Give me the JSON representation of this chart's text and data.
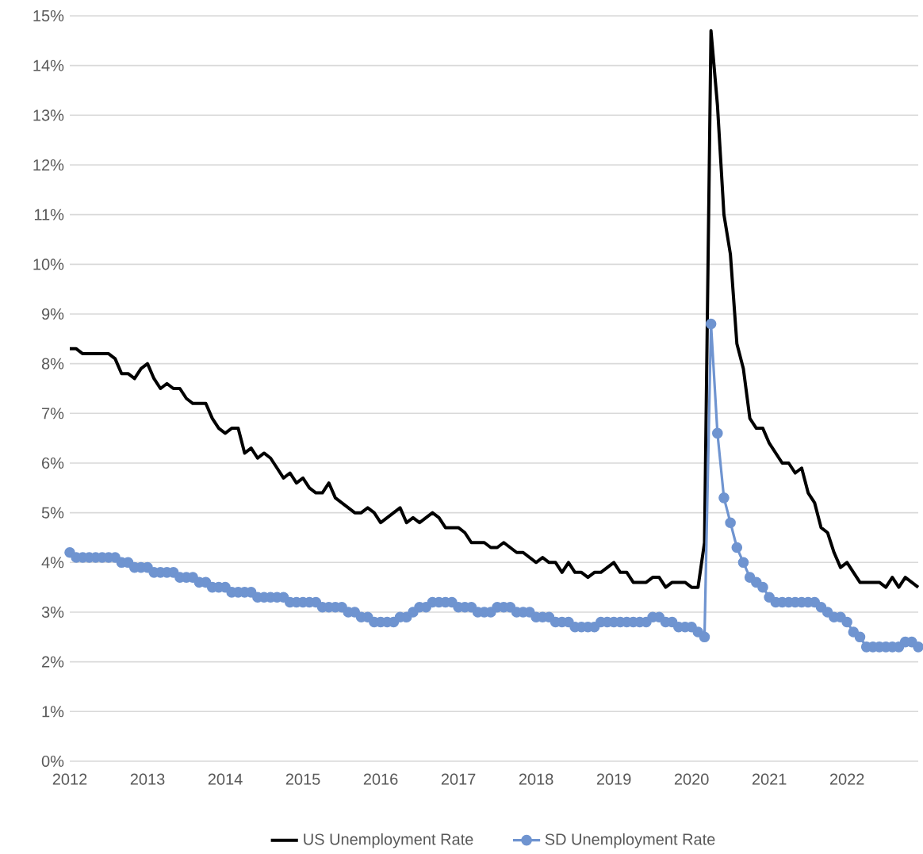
{
  "chart_data": {
    "type": "line",
    "x": [
      "2012-01",
      "2012-02",
      "2012-03",
      "2012-04",
      "2012-05",
      "2012-06",
      "2012-07",
      "2012-08",
      "2012-09",
      "2012-10",
      "2012-11",
      "2012-12",
      "2013-01",
      "2013-02",
      "2013-03",
      "2013-04",
      "2013-05",
      "2013-06",
      "2013-07",
      "2013-08",
      "2013-09",
      "2013-10",
      "2013-11",
      "2013-12",
      "2014-01",
      "2014-02",
      "2014-03",
      "2014-04",
      "2014-05",
      "2014-06",
      "2014-07",
      "2014-08",
      "2014-09",
      "2014-10",
      "2014-11",
      "2014-12",
      "2015-01",
      "2015-02",
      "2015-03",
      "2015-04",
      "2015-05",
      "2015-06",
      "2015-07",
      "2015-08",
      "2015-09",
      "2015-10",
      "2015-11",
      "2015-12",
      "2016-01",
      "2016-02",
      "2016-03",
      "2016-04",
      "2016-05",
      "2016-06",
      "2016-07",
      "2016-08",
      "2016-09",
      "2016-10",
      "2016-11",
      "2016-12",
      "2017-01",
      "2017-02",
      "2017-03",
      "2017-04",
      "2017-05",
      "2017-06",
      "2017-07",
      "2017-08",
      "2017-09",
      "2017-10",
      "2017-11",
      "2017-12",
      "2018-01",
      "2018-02",
      "2018-03",
      "2018-04",
      "2018-05",
      "2018-06",
      "2018-07",
      "2018-08",
      "2018-09",
      "2018-10",
      "2018-11",
      "2018-12",
      "2019-01",
      "2019-02",
      "2019-03",
      "2019-04",
      "2019-05",
      "2019-06",
      "2019-07",
      "2019-08",
      "2019-09",
      "2019-10",
      "2019-11",
      "2019-12",
      "2020-01",
      "2020-02",
      "2020-03",
      "2020-04",
      "2020-05",
      "2020-06",
      "2020-07",
      "2020-08",
      "2020-09",
      "2020-10",
      "2020-11",
      "2020-12",
      "2021-01",
      "2021-02",
      "2021-03",
      "2021-04",
      "2021-05",
      "2021-06",
      "2021-07",
      "2021-08",
      "2021-09",
      "2021-10",
      "2021-11",
      "2021-12",
      "2022-01",
      "2022-02",
      "2022-03",
      "2022-04",
      "2022-05",
      "2022-06",
      "2022-07",
      "2022-08",
      "2022-09",
      "2022-10",
      "2022-11",
      "2022-12"
    ],
    "series": [
      {
        "name": "US Unemployment Rate",
        "color": "#000000",
        "marker": "none",
        "values": [
          8.3,
          8.3,
          8.2,
          8.2,
          8.2,
          8.2,
          8.2,
          8.1,
          7.8,
          7.8,
          7.7,
          7.9,
          8.0,
          7.7,
          7.5,
          7.6,
          7.5,
          7.5,
          7.3,
          7.2,
          7.2,
          7.2,
          6.9,
          6.7,
          6.6,
          6.7,
          6.7,
          6.2,
          6.3,
          6.1,
          6.2,
          6.1,
          5.9,
          5.7,
          5.8,
          5.6,
          5.7,
          5.5,
          5.4,
          5.4,
          5.6,
          5.3,
          5.2,
          5.1,
          5.0,
          5.0,
          5.1,
          5.0,
          4.8,
          4.9,
          5.0,
          5.1,
          4.8,
          4.9,
          4.8,
          4.9,
          5.0,
          4.9,
          4.7,
          4.7,
          4.7,
          4.6,
          4.4,
          4.4,
          4.4,
          4.3,
          4.3,
          4.4,
          4.3,
          4.2,
          4.2,
          4.1,
          4.0,
          4.1,
          4.0,
          4.0,
          3.8,
          4.0,
          3.8,
          3.8,
          3.7,
          3.8,
          3.8,
          3.9,
          4.0,
          3.8,
          3.8,
          3.6,
          3.6,
          3.6,
          3.7,
          3.7,
          3.5,
          3.6,
          3.6,
          3.6,
          3.5,
          3.5,
          4.4,
          14.7,
          13.2,
          11.0,
          10.2,
          8.4,
          7.9,
          6.9,
          6.7,
          6.7,
          6.4,
          6.2,
          6.0,
          6.0,
          5.8,
          5.9,
          5.4,
          5.2,
          4.7,
          4.6,
          4.2,
          3.9,
          4.0,
          3.8,
          3.6,
          3.6,
          3.6,
          3.6,
          3.5,
          3.7,
          3.5,
          3.7,
          3.6,
          3.5
        ]
      },
      {
        "name": "SD Unemployment Rate",
        "color": "#6f94d0",
        "marker": "circle",
        "values": [
          4.2,
          4.1,
          4.1,
          4.1,
          4.1,
          4.1,
          4.1,
          4.1,
          4.0,
          4.0,
          3.9,
          3.9,
          3.9,
          3.8,
          3.8,
          3.8,
          3.8,
          3.7,
          3.7,
          3.7,
          3.6,
          3.6,
          3.5,
          3.5,
          3.5,
          3.4,
          3.4,
          3.4,
          3.4,
          3.3,
          3.3,
          3.3,
          3.3,
          3.3,
          3.2,
          3.2,
          3.2,
          3.2,
          3.2,
          3.1,
          3.1,
          3.1,
          3.1,
          3.0,
          3.0,
          2.9,
          2.9,
          2.8,
          2.8,
          2.8,
          2.8,
          2.9,
          2.9,
          3.0,
          3.1,
          3.1,
          3.2,
          3.2,
          3.2,
          3.2,
          3.1,
          3.1,
          3.1,
          3.0,
          3.0,
          3.0,
          3.1,
          3.1,
          3.1,
          3.0,
          3.0,
          3.0,
          2.9,
          2.9,
          2.9,
          2.8,
          2.8,
          2.8,
          2.7,
          2.7,
          2.7,
          2.7,
          2.8,
          2.8,
          2.8,
          2.8,
          2.8,
          2.8,
          2.8,
          2.8,
          2.9,
          2.9,
          2.8,
          2.8,
          2.7,
          2.7,
          2.7,
          2.6,
          2.5,
          8.8,
          6.6,
          5.3,
          4.8,
          4.3,
          4.0,
          3.7,
          3.6,
          3.5,
          3.3,
          3.2,
          3.2,
          3.2,
          3.2,
          3.2,
          3.2,
          3.2,
          3.1,
          3.0,
          2.9,
          2.9,
          2.8,
          2.6,
          2.5,
          2.3,
          2.3,
          2.3,
          2.3,
          2.3,
          2.3,
          2.4,
          2.4,
          2.3
        ]
      }
    ],
    "xlim": [
      "2012-01",
      "2022-12"
    ],
    "xticks": [
      "2012",
      "2013",
      "2014",
      "2015",
      "2016",
      "2017",
      "2018",
      "2019",
      "2020",
      "2021",
      "2022"
    ],
    "ylim": [
      0,
      15
    ],
    "yticks": [
      {
        "value": 0,
        "label": "0%"
      },
      {
        "value": 1,
        "label": "1%"
      },
      {
        "value": 2,
        "label": "2%"
      },
      {
        "value": 3,
        "label": "3%"
      },
      {
        "value": 4,
        "label": "4%"
      },
      {
        "value": 5,
        "label": "5%"
      },
      {
        "value": 6,
        "label": "6%"
      },
      {
        "value": 7,
        "label": "7%"
      },
      {
        "value": 8,
        "label": "8%"
      },
      {
        "value": 9,
        "label": "9%"
      },
      {
        "value": 10,
        "label": "10%"
      },
      {
        "value": 11,
        "label": "11%"
      },
      {
        "value": 12,
        "label": "12%"
      },
      {
        "value": 13,
        "label": "13%"
      },
      {
        "value": 14,
        "label": "14%"
      },
      {
        "value": 15,
        "label": "15%"
      }
    ],
    "grid": "y",
    "legend": "bottom",
    "line_style": "solid"
  }
}
